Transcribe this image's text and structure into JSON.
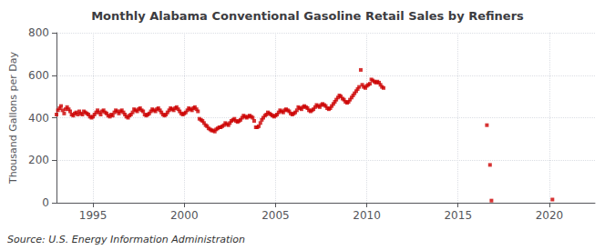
{
  "chart_data": {
    "type": "scatter",
    "title": "Monthly Alabama Conventional Gasoline Retail Sales by Refiners",
    "ylabel": "Thousand Gallons per Day",
    "annotations": [
      "Source: U.S. Energy Information Administration"
    ],
    "color": "#cc0000",
    "marker": "square",
    "grid": true,
    "xlim": [
      1993.0,
      2022.5
    ],
    "xticks": [
      1995,
      2000,
      2005,
      2010,
      2015,
      2020
    ],
    "ylim": [
      0,
      800
    ],
    "yticks": [
      0,
      200,
      400,
      600,
      800
    ],
    "x": [
      1993.0,
      1993.08,
      1993.17,
      1993.25,
      1993.33,
      1993.42,
      1993.5,
      1993.58,
      1993.67,
      1993.75,
      1993.83,
      1993.92,
      1994.0,
      1994.08,
      1994.17,
      1994.25,
      1994.33,
      1994.42,
      1994.5,
      1994.58,
      1994.67,
      1994.75,
      1994.83,
      1994.92,
      1995.0,
      1995.08,
      1995.17,
      1995.25,
      1995.33,
      1995.42,
      1995.5,
      1995.58,
      1995.67,
      1995.75,
      1995.83,
      1995.92,
      1996.0,
      1996.08,
      1996.17,
      1996.25,
      1996.33,
      1996.42,
      1996.5,
      1996.58,
      1996.67,
      1996.75,
      1996.83,
      1996.92,
      1997.0,
      1997.08,
      1997.17,
      1997.25,
      1997.33,
      1997.42,
      1997.5,
      1997.58,
      1997.67,
      1997.75,
      1997.83,
      1997.92,
      1998.0,
      1998.08,
      1998.17,
      1998.25,
      1998.33,
      1998.42,
      1998.5,
      1998.58,
      1998.67,
      1998.75,
      1998.83,
      1998.92,
      1999.0,
      1999.08,
      1999.17,
      1999.25,
      1999.33,
      1999.42,
      1999.5,
      1999.58,
      1999.67,
      1999.75,
      1999.83,
      1999.92,
      2000.0,
      2000.08,
      2000.17,
      2000.25,
      2000.33,
      2000.42,
      2000.5,
      2000.58,
      2000.67,
      2000.75,
      2000.83,
      2000.92,
      2001.0,
      2001.08,
      2001.17,
      2001.25,
      2001.33,
      2001.42,
      2001.5,
      2001.58,
      2001.67,
      2001.75,
      2001.83,
      2001.92,
      2002.0,
      2002.08,
      2002.17,
      2002.25,
      2002.33,
      2002.42,
      2002.5,
      2002.58,
      2002.67,
      2002.75,
      2002.83,
      2002.92,
      2003.0,
      2003.08,
      2003.17,
      2003.25,
      2003.33,
      2003.42,
      2003.5,
      2003.58,
      2003.67,
      2003.75,
      2003.83,
      2003.92,
      2004.0,
      2004.08,
      2004.17,
      2004.25,
      2004.33,
      2004.42,
      2004.5,
      2004.58,
      2004.67,
      2004.75,
      2004.83,
      2004.92,
      2005.0,
      2005.08,
      2005.17,
      2005.25,
      2005.33,
      2005.42,
      2005.5,
      2005.58,
      2005.67,
      2005.75,
      2005.83,
      2005.92,
      2006.0,
      2006.08,
      2006.17,
      2006.25,
      2006.33,
      2006.42,
      2006.5,
      2006.58,
      2006.67,
      2006.75,
      2006.83,
      2006.92,
      2007.0,
      2007.08,
      2007.17,
      2007.25,
      2007.33,
      2007.42,
      2007.5,
      2007.58,
      2007.67,
      2007.75,
      2007.83,
      2007.92,
      2008.0,
      2008.08,
      2008.17,
      2008.25,
      2008.33,
      2008.42,
      2008.5,
      2008.58,
      2008.67,
      2008.75,
      2008.83,
      2008.92,
      2009.0,
      2009.08,
      2009.17,
      2009.25,
      2009.33,
      2009.42,
      2009.5,
      2009.58,
      2009.67,
      2009.75,
      2009.83,
      2009.92,
      2010.0,
      2010.08,
      2010.17,
      2010.25,
      2010.33,
      2010.42,
      2010.5,
      2010.58,
      2010.67,
      2010.75,
      2010.83,
      2010.92,
      2016.58,
      2016.75,
      2016.83,
      2020.17
    ],
    "values": [
      415,
      435,
      445,
      455,
      435,
      420,
      440,
      450,
      440,
      430,
      415,
      410,
      420,
      425,
      415,
      430,
      420,
      415,
      430,
      425,
      420,
      415,
      405,
      400,
      405,
      415,
      425,
      435,
      425,
      415,
      430,
      435,
      425,
      420,
      410,
      405,
      415,
      410,
      425,
      435,
      430,
      420,
      430,
      435,
      425,
      415,
      405,
      400,
      410,
      415,
      425,
      440,
      435,
      430,
      440,
      445,
      435,
      430,
      415,
      410,
      415,
      420,
      430,
      440,
      435,
      430,
      440,
      445,
      435,
      425,
      415,
      410,
      415,
      425,
      435,
      445,
      440,
      435,
      445,
      450,
      440,
      430,
      420,
      415,
      420,
      425,
      435,
      445,
      440,
      435,
      445,
      450,
      440,
      430,
      395,
      390,
      385,
      375,
      365,
      360,
      350,
      345,
      340,
      340,
      335,
      345,
      350,
      355,
      355,
      360,
      365,
      375,
      370,
      365,
      375,
      385,
      390,
      395,
      385,
      380,
      385,
      390,
      400,
      410,
      405,
      400,
      405,
      410,
      405,
      400,
      385,
      355,
      355,
      360,
      375,
      390,
      400,
      410,
      415,
      425,
      420,
      415,
      410,
      405,
      410,
      415,
      425,
      435,
      430,
      425,
      435,
      440,
      435,
      430,
      420,
      415,
      420,
      425,
      435,
      450,
      445,
      440,
      450,
      455,
      450,
      445,
      435,
      430,
      435,
      440,
      450,
      460,
      455,
      450,
      460,
      465,
      460,
      455,
      445,
      440,
      445,
      455,
      465,
      475,
      485,
      495,
      505,
      500,
      490,
      485,
      475,
      470,
      475,
      485,
      495,
      505,
      515,
      525,
      535,
      545,
      625,
      555,
      545,
      540,
      550,
      555,
      560,
      580,
      575,
      570,
      565,
      570,
      565,
      555,
      545,
      540,
      365,
      178,
      10,
      15
    ]
  }
}
